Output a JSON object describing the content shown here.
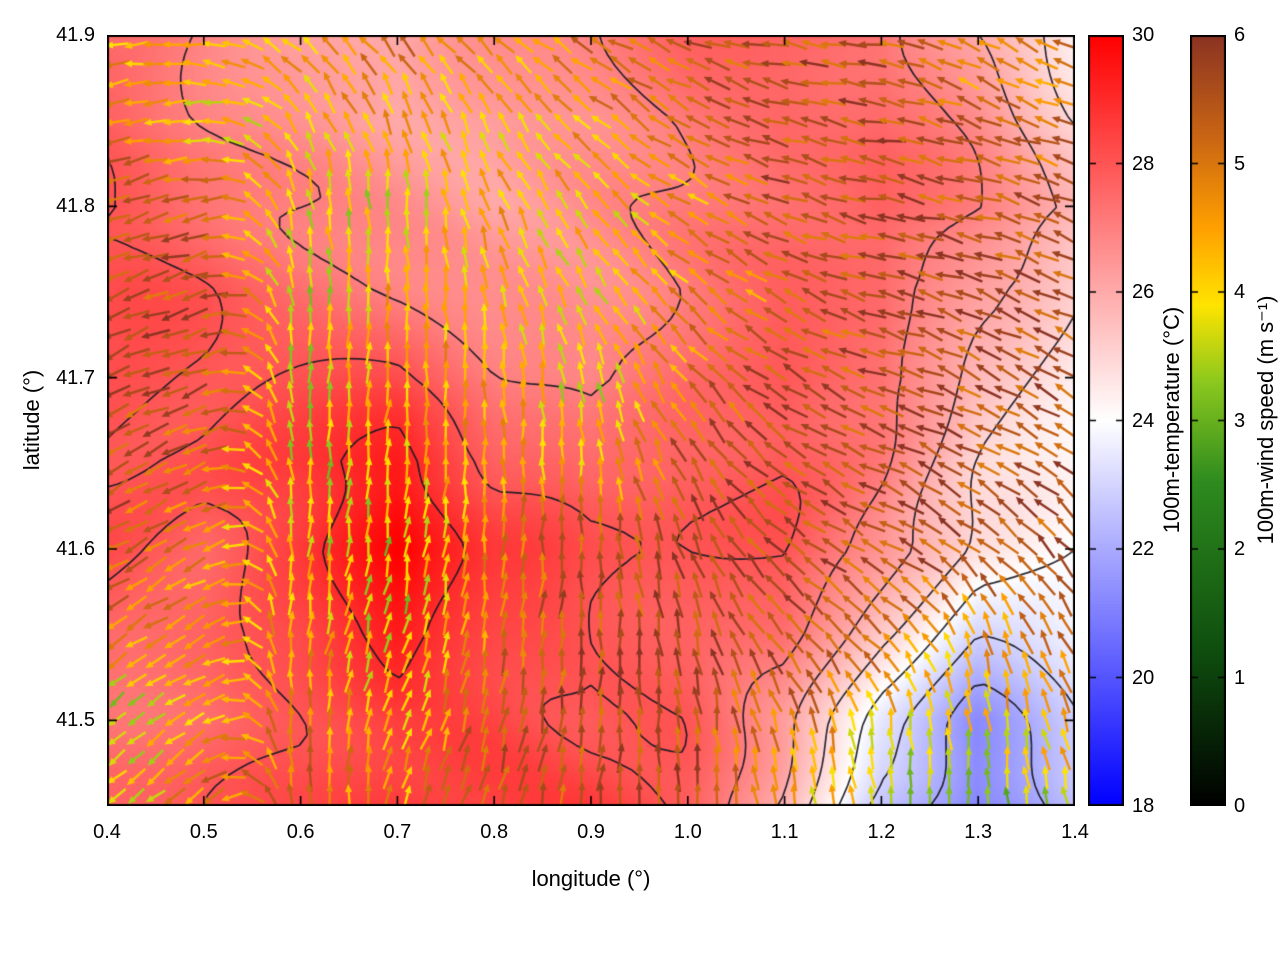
{
  "chart_data": {
    "type": "heatmap+quiver",
    "title": "",
    "xlabel": "longitude (°)",
    "ylabel": "latitude (°)",
    "xlim": [
      0.4,
      1.4
    ],
    "ylim": [
      41.45,
      41.9
    ],
    "xticks": [
      "0.4",
      "0.5",
      "0.6",
      "0.7",
      "0.8",
      "0.9",
      "1.0",
      "1.1",
      "1.2",
      "1.3",
      "1.4"
    ],
    "yticks": [
      "41.5",
      "41.6",
      "41.7",
      "41.8",
      "41.9"
    ],
    "grid": false,
    "contour_levels": [
      22,
      23,
      24,
      25,
      26,
      27,
      28,
      29
    ],
    "colorbars": {
      "temperature": {
        "label": "100m-temperature (°C)",
        "min": 18,
        "max": 30,
        "ticks": [
          "18",
          "20",
          "22",
          "24",
          "26",
          "28",
          "30"
        ],
        "stops": [
          [
            0,
            "#0000ff"
          ],
          [
            0.5,
            "#ffffff"
          ],
          [
            1,
            "#ff0000"
          ]
        ]
      },
      "wind_speed": {
        "label": "100m-wind speed (m s⁻¹)",
        "min": 0,
        "max": 6,
        "ticks": [
          "0",
          "1",
          "2",
          "3",
          "4",
          "5",
          "6"
        ],
        "stops": [
          [
            0,
            "#000000"
          ],
          [
            0.2,
            "#0e4d0e"
          ],
          [
            0.42,
            "#2e8b1e"
          ],
          [
            0.55,
            "#8cc81e"
          ],
          [
            0.65,
            "#ffe400"
          ],
          [
            0.75,
            "#ffa000"
          ],
          [
            0.87,
            "#c86414"
          ],
          [
            1,
            "#8a3322"
          ]
        ]
      }
    },
    "grid_lon": [
      0.4,
      0.5,
      0.6,
      0.7,
      0.8,
      0.9,
      1.0,
      1.1,
      1.2,
      1.3,
      1.4
    ],
    "grid_lat": [
      41.9,
      41.85,
      41.8,
      41.75,
      41.7,
      41.65,
      41.6,
      41.55,
      41.5,
      41.45
    ],
    "temperature_C": [
      [
        27.5,
        27.0,
        26.5,
        26.0,
        26.5,
        27.0,
        27.5,
        27.5,
        27.5,
        26.0,
        24.5
      ],
      [
        27.5,
        27.0,
        26.5,
        26.0,
        26.0,
        26.5,
        27.0,
        27.5,
        27.5,
        26.5,
        25.0
      ],
      [
        28.0,
        27.5,
        27.0,
        26.5,
        26.0,
        26.5,
        27.0,
        27.5,
        28.0,
        27.0,
        26.0
      ],
      [
        28.0,
        28.0,
        27.5,
        27.0,
        26.5,
        26.5,
        27.0,
        27.5,
        27.5,
        26.0,
        25.0
      ],
      [
        28.0,
        28.0,
        28.0,
        28.0,
        27.0,
        26.5,
        27.5,
        28.0,
        27.5,
        25.5,
        24.5
      ],
      [
        28.0,
        28.0,
        28.5,
        29.5,
        28.0,
        27.5,
        28.0,
        28.0,
        27.0,
        25.0,
        24.0
      ],
      [
        28.0,
        27.5,
        28.5,
        30.0,
        28.5,
        28.0,
        28.0,
        28.0,
        26.5,
        24.5,
        24.0
      ],
      [
        27.5,
        27.5,
        28.0,
        29.5,
        28.5,
        28.0,
        28.0,
        27.5,
        25.0,
        23.0,
        23.5
      ],
      [
        27.5,
        27.5,
        28.0,
        28.5,
        28.5,
        28.0,
        28.0,
        26.5,
        23.5,
        21.5,
        23.0
      ],
      [
        27.5,
        28.0,
        28.0,
        28.5,
        28.5,
        28.5,
        28.0,
        26.0,
        22.5,
        21.0,
        22.5
      ]
    ],
    "wind_speed_ms": [
      [
        4.5,
        4.0,
        4.5,
        5.0,
        4.5,
        5.0,
        5.5,
        5.5,
        5.5,
        4.5,
        5.0
      ],
      [
        5.0,
        4.0,
        4.0,
        4.5,
        4.0,
        4.5,
        5.0,
        5.5,
        5.5,
        5.0,
        5.0
      ],
      [
        5.5,
        5.0,
        4.0,
        3.5,
        4.5,
        4.0,
        4.5,
        5.5,
        5.5,
        5.5,
        5.5
      ],
      [
        5.5,
        5.5,
        3.5,
        4.5,
        4.0,
        4.0,
        4.5,
        5.0,
        5.5,
        5.5,
        5.5
      ],
      [
        5.5,
        5.5,
        3.5,
        4.5,
        4.5,
        3.5,
        5.0,
        5.5,
        5.5,
        5.5,
        5.5
      ],
      [
        5.5,
        5.0,
        3.5,
        4.0,
        4.5,
        4.0,
        5.5,
        5.5,
        5.5,
        5.5,
        5.5
      ],
      [
        5.5,
        4.5,
        4.0,
        3.5,
        5.0,
        5.5,
        5.5,
        5.5,
        5.5,
        5.5,
        5.5
      ],
      [
        5.0,
        4.5,
        4.5,
        3.5,
        5.0,
        5.5,
        5.5,
        5.5,
        5.0,
        4.5,
        5.0
      ],
      [
        3.0,
        4.5,
        5.0,
        4.0,
        5.5,
        5.5,
        5.5,
        5.0,
        4.0,
        4.0,
        4.5
      ],
      [
        3.5,
        5.0,
        5.0,
        4.5,
        5.5,
        5.5,
        5.5,
        4.5,
        3.5,
        2.5,
        4.0
      ]
    ],
    "wind_dir_deg_math": [
      [
        190,
        170,
        140,
        130,
        140,
        150,
        160,
        170,
        170,
        150,
        160
      ],
      [
        190,
        180,
        120,
        110,
        120,
        140,
        150,
        165,
        170,
        160,
        160
      ],
      [
        200,
        190,
        100,
        90,
        110,
        130,
        150,
        160,
        170,
        165,
        160
      ],
      [
        200,
        195,
        95,
        90,
        100,
        120,
        140,
        155,
        165,
        160,
        155
      ],
      [
        205,
        200,
        90,
        85,
        95,
        100,
        130,
        150,
        160,
        155,
        150
      ],
      [
        210,
        200,
        90,
        80,
        90,
        95,
        120,
        145,
        155,
        150,
        145
      ],
      [
        210,
        205,
        85,
        80,
        85,
        90,
        110,
        140,
        150,
        140,
        130
      ],
      [
        215,
        210,
        80,
        75,
        80,
        90,
        100,
        130,
        140,
        110,
        120
      ],
      [
        220,
        210,
        90,
        70,
        75,
        85,
        95,
        110,
        100,
        95,
        110
      ],
      [
        225,
        215,
        95,
        75,
        70,
        80,
        90,
        100,
        95,
        90,
        100
      ]
    ]
  }
}
